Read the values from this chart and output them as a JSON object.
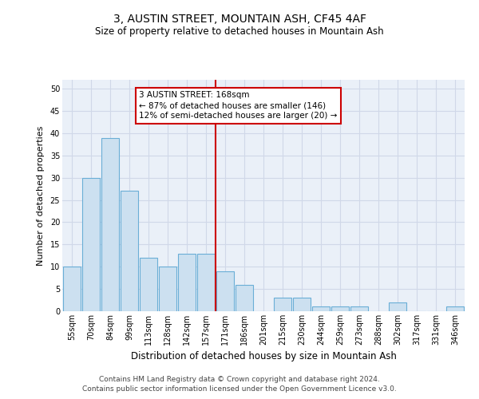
{
  "title": "3, AUSTIN STREET, MOUNTAIN ASH, CF45 4AF",
  "subtitle": "Size of property relative to detached houses in Mountain Ash",
  "xlabel": "Distribution of detached houses by size in Mountain Ash",
  "ylabel": "Number of detached properties",
  "categories": [
    "55sqm",
    "70sqm",
    "84sqm",
    "99sqm",
    "113sqm",
    "128sqm",
    "142sqm",
    "157sqm",
    "171sqm",
    "186sqm",
    "201sqm",
    "215sqm",
    "230sqm",
    "244sqm",
    "259sqm",
    "273sqm",
    "288sqm",
    "302sqm",
    "317sqm",
    "331sqm",
    "346sqm"
  ],
  "values": [
    10,
    30,
    39,
    27,
    12,
    10,
    13,
    13,
    9,
    6,
    0,
    3,
    3,
    1,
    1,
    1,
    0,
    2,
    0,
    0,
    1
  ],
  "bar_color": "#cce0f0",
  "bar_edge_color": "#6aaed6",
  "reference_line_idx": 8,
  "reference_label": "3 AUSTIN STREET: 168sqm",
  "annotation_line1": "← 87% of detached houses are smaller (146)",
  "annotation_line2": "12% of semi-detached houses are larger (20) →",
  "annotation_box_color": "#ffffff",
  "annotation_box_edge": "#cc0000",
  "reference_line_color": "#cc0000",
  "ylim": [
    0,
    52
  ],
  "yticks": [
    0,
    5,
    10,
    15,
    20,
    25,
    30,
    35,
    40,
    45,
    50
  ],
  "footer_line1": "Contains HM Land Registry data © Crown copyright and database right 2024.",
  "footer_line2": "Contains public sector information licensed under the Open Government Licence v3.0.",
  "grid_color": "#d0d8e8",
  "background_color": "#eaf0f8",
  "title_fontsize": 10,
  "subtitle_fontsize": 8.5,
  "ylabel_fontsize": 8,
  "xlabel_fontsize": 8.5,
  "tick_fontsize": 7,
  "annotation_fontsize": 7.5,
  "footer_fontsize": 6.5
}
